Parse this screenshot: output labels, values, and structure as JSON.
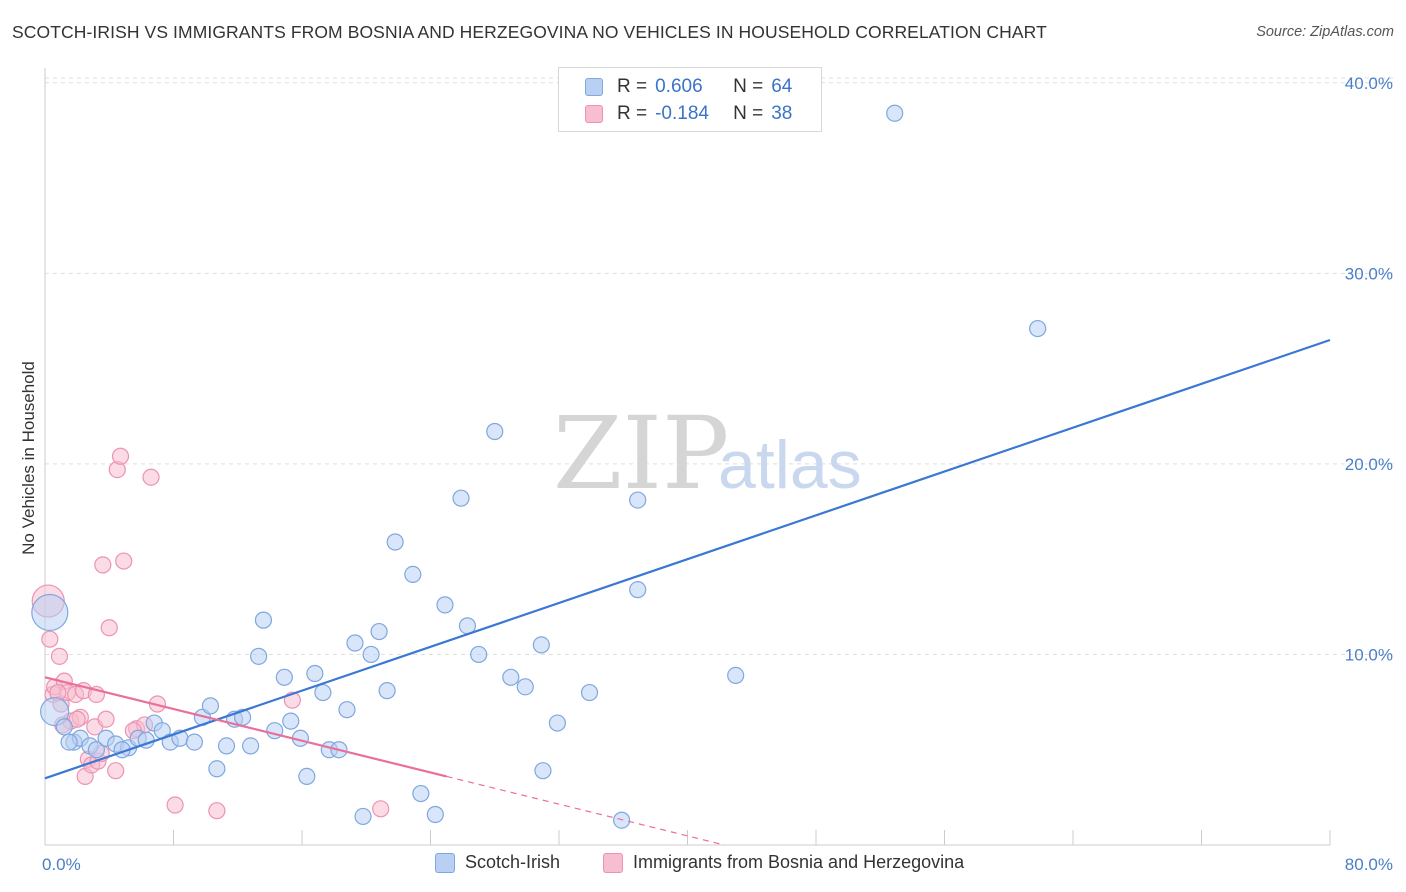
{
  "title": "SCOTCH-IRISH VS IMMIGRANTS FROM BOSNIA AND HERZEGOVINA NO VEHICLES IN HOUSEHOLD CORRELATION CHART",
  "source": "Source: ZipAtlas.com",
  "watermark": {
    "zip": "ZIP",
    "atlas": "atlas"
  },
  "legend": {
    "rows": [
      {
        "r_label": "R =",
        "r_value": "0.606",
        "n_label": "N =",
        "n_value": "64"
      },
      {
        "r_label": "R =",
        "r_value": "-0.184",
        "n_label": "N =",
        "n_value": "38"
      }
    ],
    "series_names": [
      "Scotch-Irish",
      "Immigrants from Bosnia and Herzegovina"
    ]
  },
  "colors": {
    "blue": "#3a78d4",
    "blue_fill": "#b9d0f2",
    "blue_edge": "#7fa7e0",
    "pink": "#e8709a",
    "pink_fill": "#f7bdd0",
    "pink_edge": "#ec93b2",
    "grid": "#dedede",
    "axis": "#cccccc"
  },
  "chart_data": {
    "type": "scatter",
    "title": "SCOTCH-IRISH VS IMMIGRANTS FROM BOSNIA AND HERZEGOVINA NO VEHICLES IN HOUSEHOLD CORRELATION CHART",
    "xlabel": "",
    "ylabel": "No Vehicles in Household",
    "xlim": [
      0,
      80
    ],
    "ylim": [
      0,
      42
    ],
    "x_ticks": [
      "0.0%",
      "80.0%"
    ],
    "y_ticks": [
      {
        "value": 10,
        "label": "10.0%"
      },
      {
        "value": 20,
        "label": "20.0%"
      },
      {
        "value": 30,
        "label": "30.0%"
      },
      {
        "value": 40,
        "label": "40.0%"
      }
    ],
    "series": [
      {
        "name": "Scotch-Irish",
        "color": "blue",
        "trend": {
          "x": [
            0,
            80
          ],
          "y": [
            3.5,
            26.5
          ],
          "dashed_from": null
        },
        "points": [
          [
            0.3,
            12.2
          ],
          [
            0.6,
            7.0
          ],
          [
            1.2,
            6.2
          ],
          [
            1.8,
            5.4
          ],
          [
            2.2,
            5.6
          ],
          [
            2.8,
            5.2
          ],
          [
            3.2,
            5.0
          ],
          [
            3.8,
            5.6
          ],
          [
            4.4,
            5.3
          ],
          [
            5.2,
            5.1
          ],
          [
            5.8,
            5.6
          ],
          [
            6.3,
            5.5
          ],
          [
            6.8,
            6.4
          ],
          [
            7.3,
            6.0
          ],
          [
            7.8,
            5.4
          ],
          [
            8.4,
            5.6
          ],
          [
            9.3,
            5.4
          ],
          [
            9.8,
            6.7
          ],
          [
            10.3,
            7.3
          ],
          [
            10.7,
            4.0
          ],
          [
            11.3,
            5.2
          ],
          [
            11.8,
            6.6
          ],
          [
            12.3,
            6.7
          ],
          [
            12.8,
            5.2
          ],
          [
            13.3,
            9.9
          ],
          [
            13.6,
            11.8
          ],
          [
            14.3,
            6.0
          ],
          [
            14.9,
            8.8
          ],
          [
            15.3,
            6.5
          ],
          [
            15.9,
            5.6
          ],
          [
            16.3,
            3.6
          ],
          [
            16.8,
            9.0
          ],
          [
            17.3,
            8.0
          ],
          [
            17.7,
            5.0
          ],
          [
            18.3,
            5.0
          ],
          [
            18.8,
            7.1
          ],
          [
            19.3,
            10.6
          ],
          [
            19.8,
            1.5
          ],
          [
            20.3,
            10.0
          ],
          [
            20.8,
            11.2
          ],
          [
            21.3,
            8.1
          ],
          [
            21.8,
            15.9
          ],
          [
            22.9,
            14.2
          ],
          [
            23.4,
            2.7
          ],
          [
            24.3,
            1.6
          ],
          [
            24.9,
            12.6
          ],
          [
            25.9,
            18.2
          ],
          [
            26.3,
            11.5
          ],
          [
            27.0,
            10.0
          ],
          [
            28.0,
            21.7
          ],
          [
            29.0,
            8.8
          ],
          [
            29.9,
            8.3
          ],
          [
            30.9,
            10.5
          ],
          [
            31.0,
            3.9
          ],
          [
            31.9,
            6.4
          ],
          [
            33.9,
            8.0
          ],
          [
            35.9,
            1.3
          ],
          [
            36.9,
            18.1
          ],
          [
            36.9,
            13.4
          ],
          [
            43.0,
            8.9
          ],
          [
            52.9,
            38.4
          ],
          [
            61.8,
            27.1
          ],
          [
            1.5,
            5.4
          ],
          [
            4.8,
            5.0
          ]
        ]
      },
      {
        "name": "Immigrants from Bosnia and Herzegovina",
        "color": "pink",
        "trend": {
          "x": [
            0,
            42.3
          ],
          "y": [
            8.8,
            0
          ],
          "dashed_from": 25
        },
        "points": [
          [
            0.2,
            12.8
          ],
          [
            0.3,
            10.8
          ],
          [
            0.5,
            7.9
          ],
          [
            0.6,
            8.3
          ],
          [
            0.9,
            9.9
          ],
          [
            1.0,
            7.4
          ],
          [
            1.2,
            8.6
          ],
          [
            1.4,
            8.0
          ],
          [
            1.6,
            6.5
          ],
          [
            1.9,
            7.9
          ],
          [
            2.2,
            6.7
          ],
          [
            2.4,
            8.1
          ],
          [
            2.5,
            3.6
          ],
          [
            2.7,
            4.5
          ],
          [
            2.9,
            4.2
          ],
          [
            3.1,
            6.2
          ],
          [
            3.2,
            7.9
          ],
          [
            3.3,
            4.4
          ],
          [
            3.5,
            4.8
          ],
          [
            3.6,
            14.7
          ],
          [
            3.8,
            6.6
          ],
          [
            4.0,
            11.4
          ],
          [
            4.4,
            3.9
          ],
          [
            4.5,
            19.7
          ],
          [
            4.7,
            20.4
          ],
          [
            4.9,
            14.9
          ],
          [
            5.7,
            6.1
          ],
          [
            6.2,
            6.3
          ],
          [
            6.6,
            19.3
          ],
          [
            7.0,
            7.4
          ],
          [
            8.1,
            2.1
          ],
          [
            10.7,
            1.8
          ],
          [
            15.4,
            7.6
          ],
          [
            20.9,
            1.9
          ],
          [
            1.1,
            6.3
          ],
          [
            2.0,
            6.6
          ],
          [
            0.8,
            8.0
          ],
          [
            5.5,
            6.0
          ]
        ]
      }
    ]
  }
}
